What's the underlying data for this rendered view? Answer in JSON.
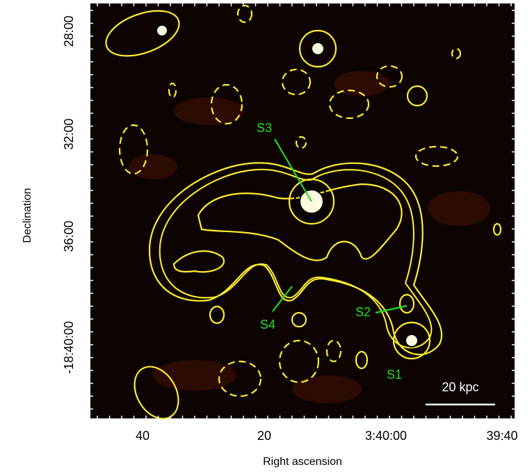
{
  "image": {
    "y_ticks": [
      "28:00",
      "32:00",
      "36:00",
      "-18:40:00"
    ],
    "x_ticks": [
      "40",
      "20",
      "3:40:00",
      "39:40"
    ],
    "y_label": "Declination",
    "x_label": "Right ascension",
    "sources": [
      "S1",
      "S2",
      "S3",
      "S4"
    ],
    "scale_bar": "20 kpc"
  }
}
